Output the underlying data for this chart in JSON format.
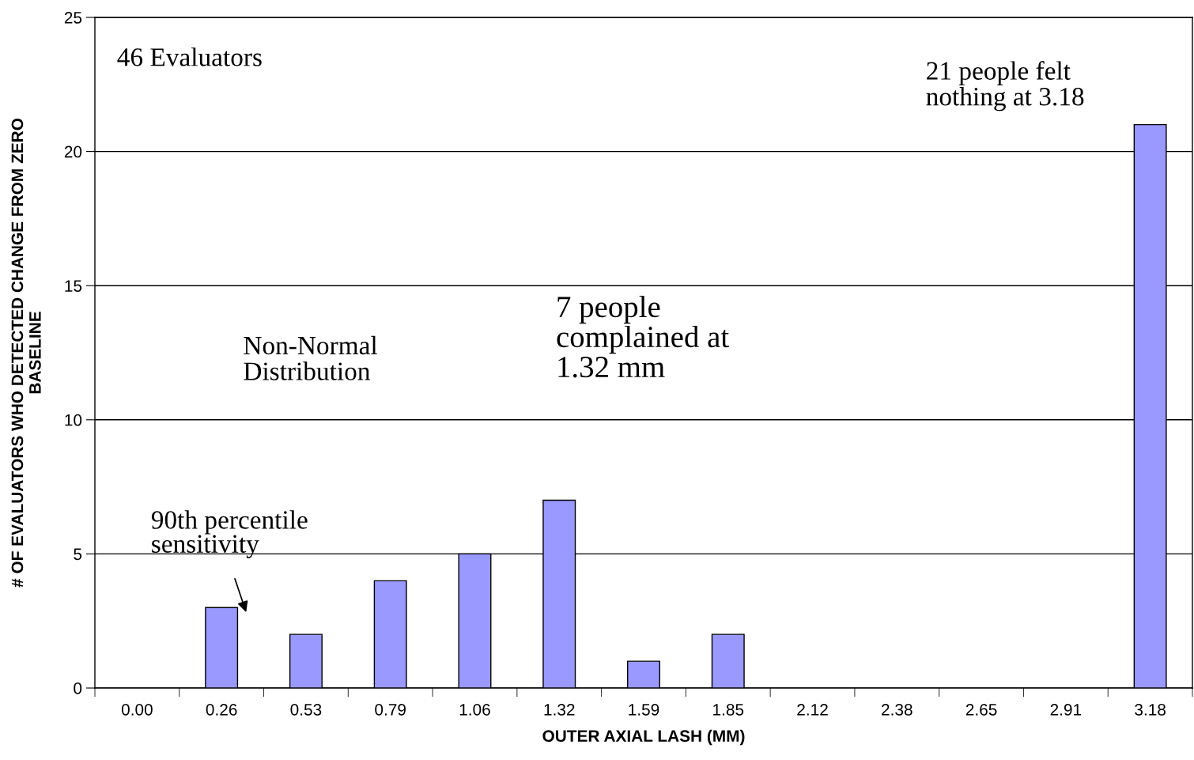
{
  "chart_data": {
    "type": "bar",
    "xlabel": "OUTER AXIAL LASH (MM)",
    "ylabel": "# OF EVALUATORS WHO DETECTED CHANGE FROM ZERO\nBASELINE",
    "categories": [
      "0.00",
      "0.26",
      "0.53",
      "0.79",
      "1.06",
      "1.32",
      "1.59",
      "1.85",
      "2.12",
      "2.38",
      "2.65",
      "2.91",
      "3.18"
    ],
    "values": [
      0,
      3,
      2,
      4,
      5,
      7,
      1,
      2,
      0,
      0,
      0,
      0,
      21
    ],
    "color": "#9999ff",
    "ylim": [
      0,
      25
    ],
    "yticks": [
      0,
      5,
      10,
      15,
      20,
      25
    ],
    "grid": "y",
    "annotations": [
      "46 Evaluators",
      "21 people felt\nnothing at 3.18",
      "7 people\ncomplained at\n1.32 mm",
      "Non-Normal\nDistribution",
      "90th percentile\nsensitivity"
    ]
  }
}
